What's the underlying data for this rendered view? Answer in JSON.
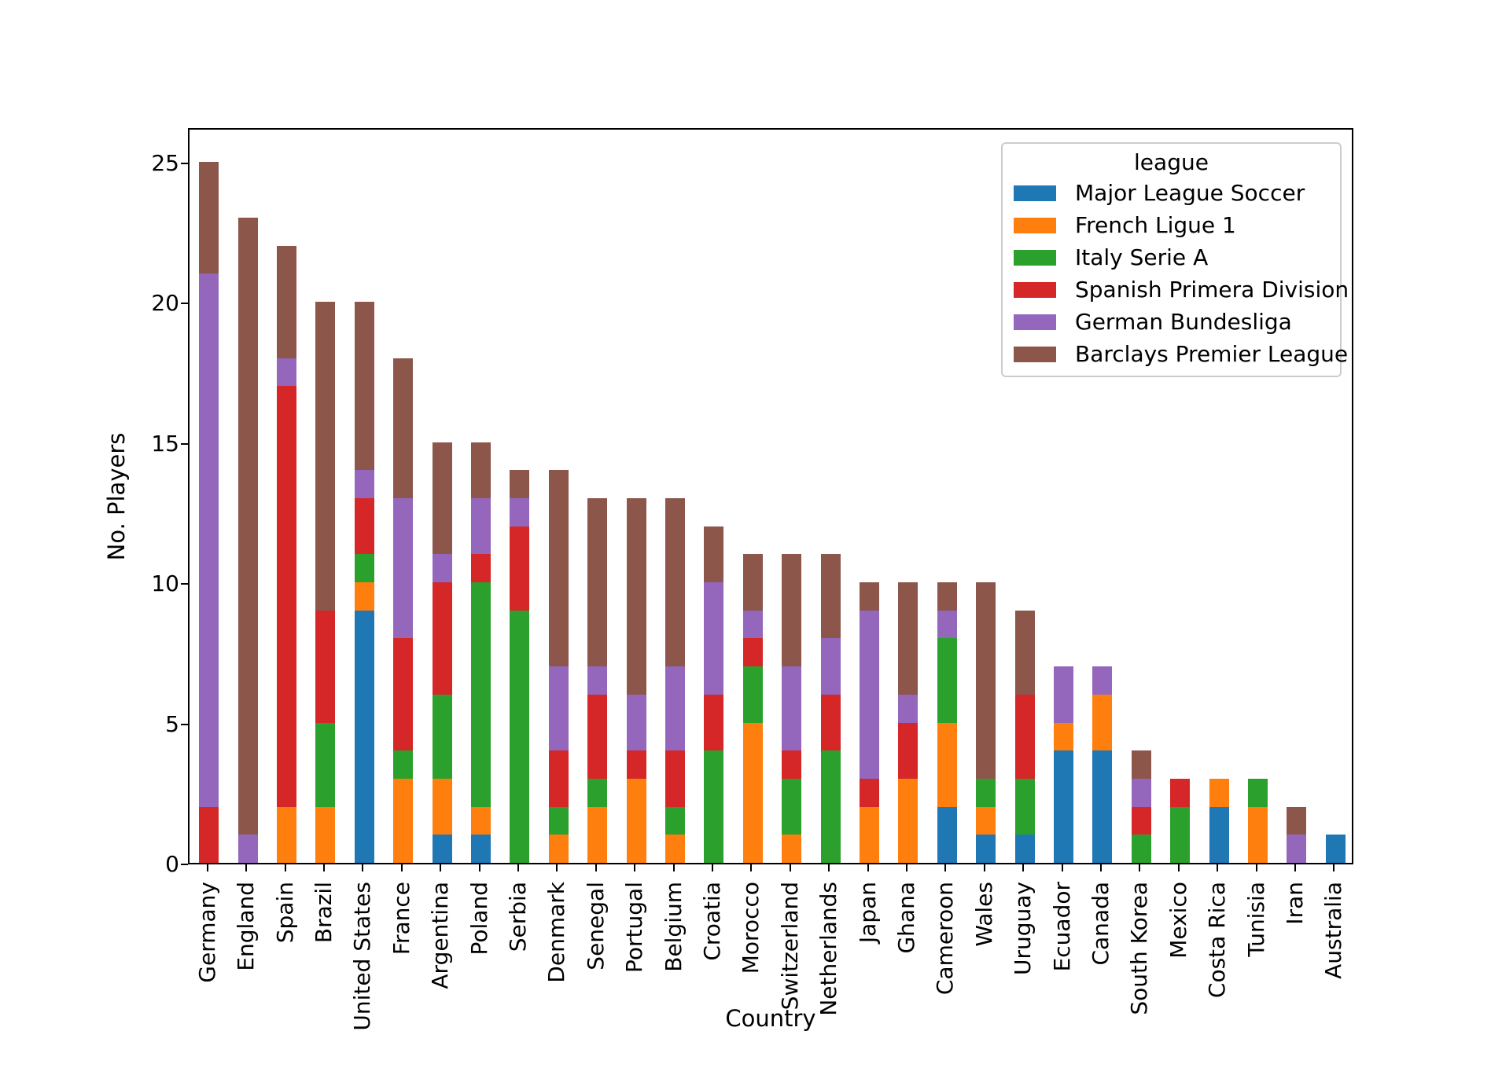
{
  "figure": {
    "background": "#ffffff"
  },
  "chart_data": {
    "type": "bar",
    "stacked": true,
    "title": "",
    "xlabel": "Country",
    "ylabel": "No. Players",
    "grid": false,
    "yticks": [
      0,
      5,
      10,
      15,
      20,
      25
    ],
    "ylim": [
      0,
      26.25
    ],
    "legend": {
      "title": "league",
      "position": "upper right"
    },
    "categories": [
      "Germany",
      "England",
      "Spain",
      "Brazil",
      "United States",
      "France",
      "Argentina",
      "Poland",
      "Serbia",
      "Denmark",
      "Senegal",
      "Portugal",
      "Belgium",
      "Croatia",
      "Morocco",
      "Switzerland",
      "Netherlands",
      "Japan",
      "Ghana",
      "Cameroon",
      "Wales",
      "Uruguay",
      "Ecuador",
      "Canada",
      "South Korea",
      "Mexico",
      "Costa Rica",
      "Tunisia",
      "Iran",
      "Australia"
    ],
    "series": [
      {
        "name": "Major League Soccer",
        "color": "#1f77b4",
        "values": [
          0,
          0,
          0,
          0,
          9,
          0,
          1,
          1,
          0,
          0,
          0,
          0,
          0,
          0,
          0,
          0,
          0,
          0,
          0,
          2,
          1,
          1,
          4,
          4,
          0,
          0,
          2,
          0,
          0,
          1
        ]
      },
      {
        "name": "French Ligue 1",
        "color": "#ff7f0e",
        "values": [
          0,
          0,
          2,
          2,
          1,
          3,
          2,
          1,
          0,
          1,
          2,
          3,
          1,
          0,
          5,
          1,
          0,
          2,
          3,
          3,
          1,
          0,
          1,
          2,
          0,
          0,
          1,
          2,
          0,
          0
        ]
      },
      {
        "name": "Italy Serie A",
        "color": "#2ca02c",
        "values": [
          0,
          0,
          0,
          3,
          1,
          1,
          3,
          8,
          9,
          1,
          1,
          0,
          1,
          4,
          2,
          2,
          4,
          0,
          0,
          3,
          1,
          2,
          0,
          0,
          1,
          2,
          0,
          1,
          0,
          0
        ]
      },
      {
        "name": "Spanish Primera Division",
        "color": "#d62728",
        "values": [
          2,
          0,
          15,
          4,
          2,
          4,
          4,
          1,
          3,
          2,
          3,
          1,
          2,
          2,
          1,
          1,
          2,
          1,
          2,
          0,
          0,
          3,
          0,
          0,
          1,
          1,
          0,
          0,
          0,
          0
        ]
      },
      {
        "name": "German Bundesliga",
        "color": "#9467bd",
        "values": [
          19,
          1,
          1,
          0,
          1,
          5,
          1,
          2,
          1,
          3,
          1,
          2,
          3,
          4,
          1,
          3,
          2,
          6,
          1,
          1,
          0,
          0,
          2,
          1,
          1,
          0,
          0,
          0,
          1,
          0
        ]
      },
      {
        "name": "Barclays Premier League",
        "color": "#8c564b",
        "values": [
          4,
          22,
          4,
          11,
          6,
          5,
          4,
          2,
          1,
          7,
          6,
          7,
          6,
          2,
          2,
          4,
          3,
          1,
          4,
          1,
          7,
          3,
          0,
          0,
          1,
          0,
          0,
          0,
          1,
          0
        ]
      }
    ]
  }
}
